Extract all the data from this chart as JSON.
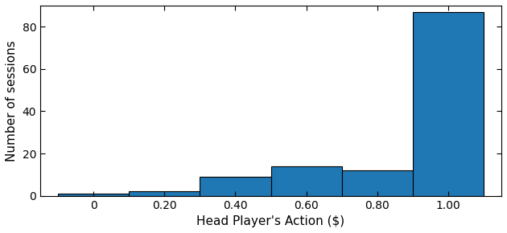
{
  "bin_edges": [
    -0.1,
    0.1,
    0.3,
    0.5,
    0.7,
    0.9,
    1.1
  ],
  "counts": [
    1,
    2,
    9,
    14,
    12,
    87
  ],
  "bar_color": "#1f77b4",
  "bar_edge_color": "#000000",
  "xlabel": "Head Player's Action ($)",
  "ylabel": "Number of sessions",
  "xlim": [
    -0.15,
    1.15
  ],
  "ylim": [
    0,
    90
  ],
  "xticks": [
    0.0,
    0.2,
    0.4,
    0.6,
    0.8,
    1.0
  ],
  "xticklabels": [
    "0",
    "0.20",
    "0.40",
    "0.60",
    "0.80",
    "1.00"
  ],
  "yticks": [
    0,
    20,
    40,
    60,
    80
  ],
  "background_color": "#ffffff",
  "tick_fontsize": 10,
  "label_fontsize": 11,
  "linewidth": 0.8
}
